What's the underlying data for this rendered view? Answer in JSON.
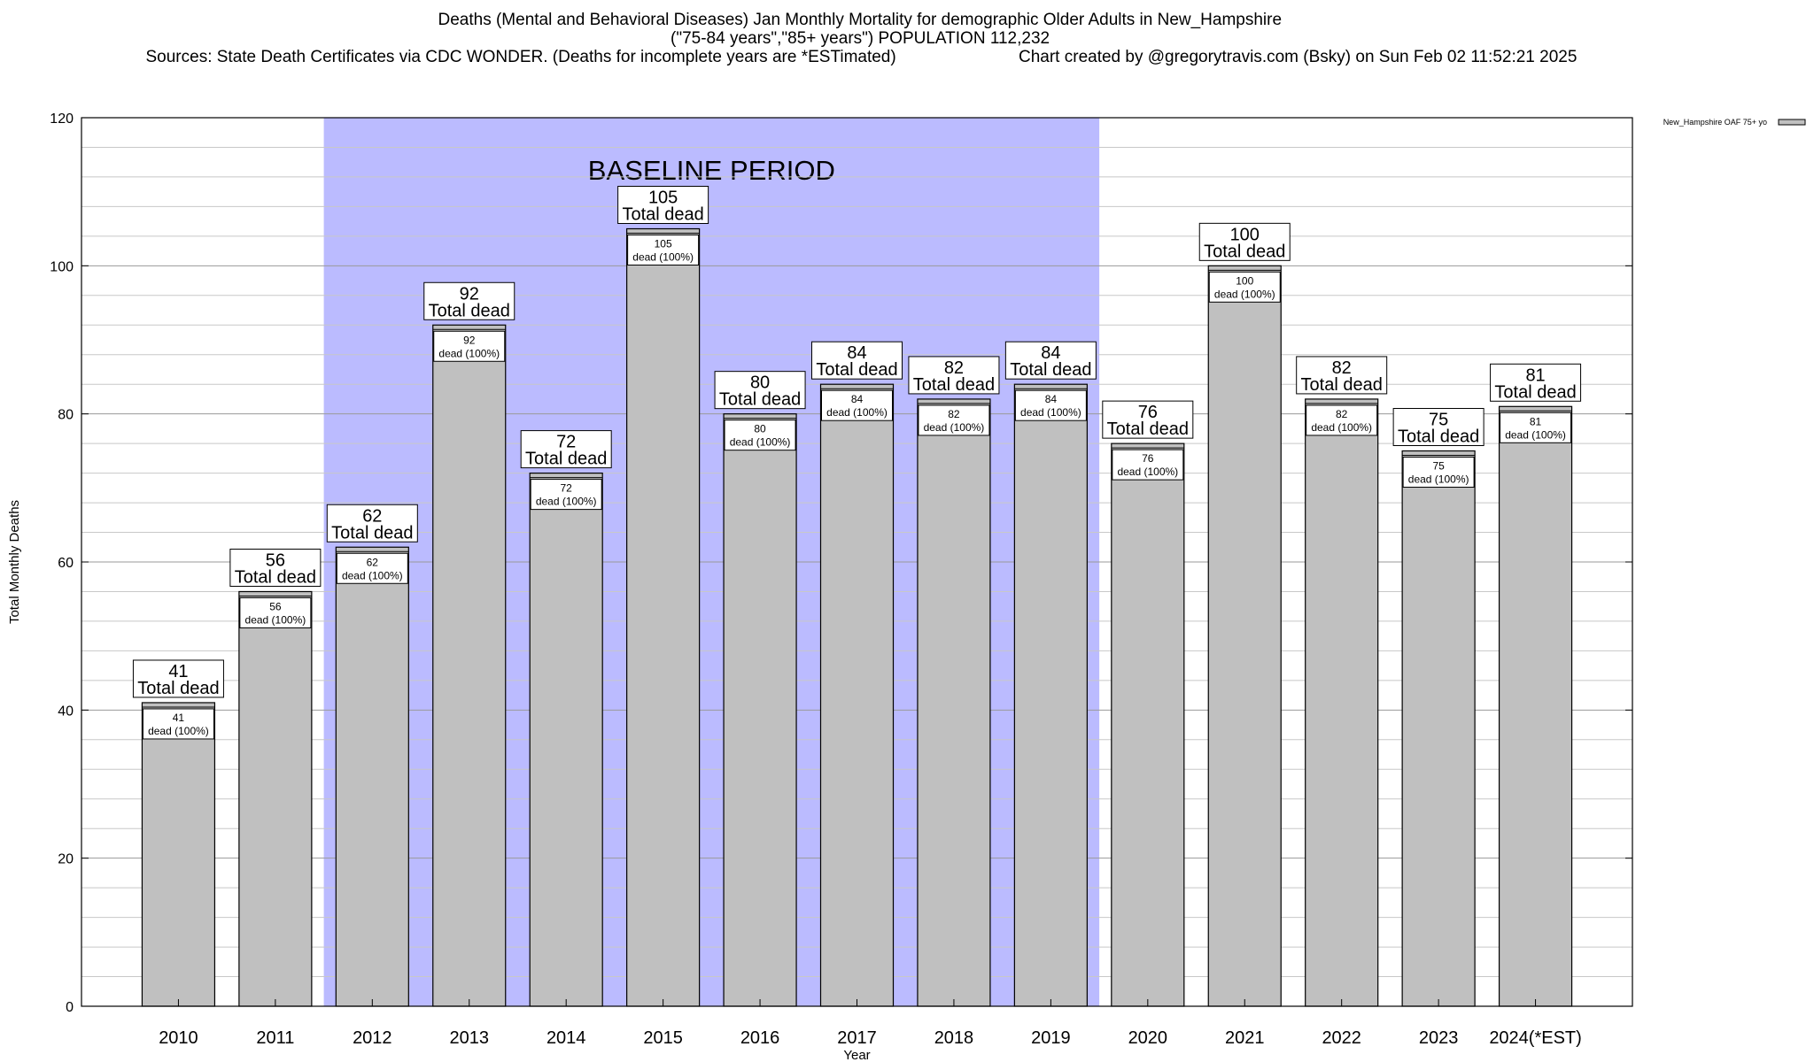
{
  "header": {
    "title_line1": "Deaths (Mental and Behavioral Diseases) Jan Monthly Mortality for demographic Older Adults in New_Hampshire",
    "title_line2": "(\"75-84 years\",\"85+ years\") POPULATION 112,232",
    "sources": "Sources: State Death Certificates via CDC WONDER. (Deaths for incomplete years are *ESTimated)",
    "credit": "Chart created by @gregorytravis.com (Bsky) on Sun Feb 02 11:52:21 2025"
  },
  "chart_data": {
    "type": "bar",
    "title": "Deaths (Mental and Behavioral Diseases) Jan Monthly Mortality for demographic Older Adults in New_Hampshire",
    "xlabel": "Year",
    "ylabel": "Total Monthly Deaths",
    "ylim": [
      0,
      120
    ],
    "yticks": [
      0,
      20,
      40,
      60,
      80,
      100,
      120
    ],
    "categories": [
      "2010",
      "2011",
      "2012",
      "2013",
      "2014",
      "2015",
      "2016",
      "2017",
      "2018",
      "2019",
      "2020",
      "2021",
      "2022",
      "2023",
      "2024(*EST)"
    ],
    "series": [
      {
        "name": "New_Hampshire OAF 75+ yo",
        "values": [
          41,
          56,
          62,
          92,
          72,
          105,
          80,
          84,
          82,
          84,
          76,
          100,
          82,
          75,
          81
        ],
        "color": "#c0c0c0"
      }
    ],
    "total_label_text": "Total dead",
    "inner_label_text": "dead (100%)",
    "baseline": {
      "label": "BASELINE PERIOD",
      "start_category": "2012",
      "end_category": "2019",
      "color": "#bbbbff"
    },
    "grid": true,
    "legend": "top-right"
  }
}
